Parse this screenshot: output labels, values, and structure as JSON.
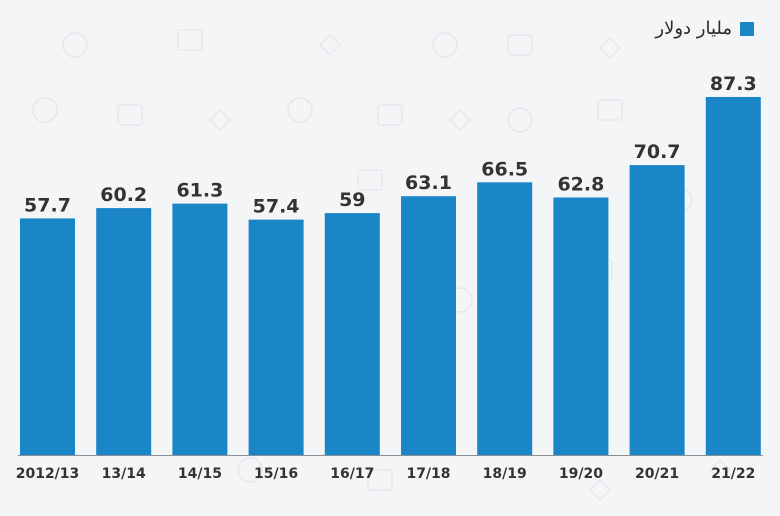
{
  "legend": {
    "label": "مليار دولار",
    "color": "#1a86c8"
  },
  "chart_data": {
    "type": "bar",
    "categories": [
      "2012/13",
      "13/14",
      "14/15",
      "15/16",
      "16/17",
      "17/18",
      "18/19",
      "19/20",
      "20/21",
      "21/22"
    ],
    "series": [
      {
        "name": "مليار دولار",
        "values": [
          57.7,
          60.2,
          61.3,
          57.4,
          59,
          63.1,
          66.5,
          62.8,
          70.7,
          87.3
        ],
        "value_labels": [
          "57.7",
          "60.2",
          "61.3",
          "57.4",
          "59",
          "63.1",
          "66.5",
          "62.8",
          "70.7",
          "87.3"
        ]
      }
    ],
    "bar_color": "#1a86c8",
    "grid": false,
    "legend_position": "top-right"
  }
}
